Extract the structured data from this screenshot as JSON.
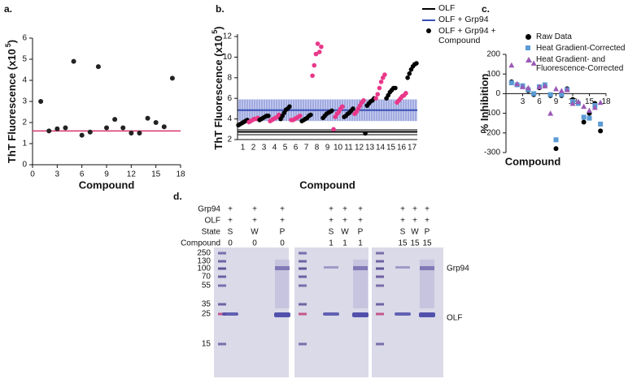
{
  "chart_data": [
    {
      "type": "scatter",
      "label": "a.",
      "ylabel": "ThT Fluorescence (x10",
      "ylabel_exponent": "5",
      "ylabel_close": ")",
      "xlabel": "Compound",
      "x": [
        1,
        2,
        3,
        4,
        5,
        6,
        7,
        8,
        9,
        10,
        11,
        12,
        13,
        14,
        15,
        16,
        17
      ],
      "values": [
        3.0,
        1.6,
        1.7,
        1.75,
        4.9,
        1.4,
        1.55,
        4.65,
        1.75,
        2.15,
        1.75,
        1.5,
        1.5,
        2.2,
        2.0,
        1.8,
        4.1
      ],
      "color": "#222222",
      "xlim": [
        0,
        18
      ],
      "xticks": [
        0,
        3,
        6,
        9,
        12,
        15,
        18
      ],
      "ylim": [
        0,
        6
      ],
      "yticks": [
        0,
        1,
        2,
        3,
        4,
        5,
        6
      ],
      "reference_line": {
        "value": 1.6,
        "color": "#d6336c"
      }
    },
    {
      "type": "grouped_scatter",
      "label": "b.",
      "ylabel": "ThT Fluorescence (x10",
      "ylabel_exponent": "5",
      "ylabel_close": ")",
      "xlabel": "Compound",
      "categories": [
        "1",
        "2",
        "3",
        "4",
        "5",
        "6",
        "7",
        "8",
        "9",
        "10",
        "11",
        "12",
        "13",
        "14",
        "15",
        "16",
        "17"
      ],
      "bands": [
        {
          "name": "OLF",
          "color": "#000000",
          "mean": 2.75,
          "range": [
            2.4,
            3.1
          ]
        },
        {
          "name": "OLF + Grp94",
          "color": "#3a4fb5",
          "mean": 4.85,
          "range": [
            3.8,
            5.9
          ]
        }
      ],
      "series": [
        {
          "name": "OLF + Grp94 + Compound",
          "color": "#000000",
          "point_colors": [
            "#000000",
            "#e8388a",
            "#000000",
            "#e8388a",
            "#000000",
            "#e8388a",
            "#000000",
            "#e8388a",
            "#000000",
            "#e8388a",
            "#000000",
            "#e8388a",
            "#000000",
            "#e8388a",
            "#000000",
            "#e8388a",
            "#000000"
          ],
          "values": [
            [
              3.4,
              3.5,
              3.6,
              3.7,
              3.8,
              3.9
            ],
            [
              3.7,
              3.8,
              3.9,
              4.0,
              4.0,
              4.1
            ],
            [
              3.9,
              4.0,
              4.1,
              4.2,
              4.3,
              4.3
            ],
            [
              3.8,
              3.9,
              4.0,
              4.1,
              4.2,
              4.4
            ],
            [
              4.0,
              4.3,
              4.6,
              4.9,
              5.0,
              5.2
            ],
            [
              3.9,
              3.9,
              4.0,
              4.1,
              4.2,
              4.3
            ],
            [
              3.8,
              3.9,
              4.0,
              4.1,
              4.3,
              4.4
            ],
            [
              8.2,
              9.2,
              10.3,
              11.3,
              10.5,
              11.0
            ],
            [
              4.1,
              4.3,
              4.5,
              4.6,
              4.7,
              4.8
            ],
            [
              3.0,
              4.2,
              4.5,
              4.7,
              5.0,
              5.2
            ],
            [
              4.2,
              4.3,
              4.5,
              4.6,
              4.8,
              5.0
            ],
            [
              4.5,
              4.7,
              5.0,
              5.3,
              5.6,
              5.8
            ],
            [
              2.6,
              5.3,
              5.5,
              5.7,
              5.8,
              6.0
            ],
            [
              6.0,
              6.4,
              7.0,
              7.6,
              8.0,
              8.3
            ],
            [
              6.0,
              6.3,
              6.6,
              6.8,
              7.0,
              7.0
            ],
            [
              5.6,
              5.8,
              6.0,
              6.2,
              6.3,
              6.5
            ],
            [
              8.0,
              8.4,
              8.8,
              9.1,
              9.3,
              9.4
            ]
          ]
        }
      ],
      "ylim": [
        2,
        12
      ],
      "yticks": [
        2,
        4,
        6,
        8,
        10,
        12
      ],
      "legend": "outside-top-right"
    },
    {
      "type": "scatter",
      "label": "c.",
      "ylabel": "% Inhibition",
      "xlabel": "Compound",
      "x": [
        1,
        2,
        3,
        4,
        5,
        6,
        7,
        8,
        9,
        10,
        11,
        12,
        13,
        14,
        15,
        16,
        17
      ],
      "series": [
        {
          "name": "Raw Data",
          "color": "#000000",
          "marker": "circle",
          "values": [
            60,
            45,
            40,
            15,
            -5,
            30,
            40,
            -10,
            -280,
            -10,
            25,
            -30,
            -50,
            -145,
            -100,
            -50,
            -190
          ]
        },
        {
          "name": "Heat Gradient-Corrected",
          "color": "#5b9bd5",
          "marker": "square",
          "values": [
            55,
            45,
            40,
            20,
            0,
            35,
            45,
            -5,
            -235,
            -5,
            20,
            -40,
            -50,
            -120,
            -125,
            -60,
            -155
          ]
        },
        {
          "name": "Heat Gradient- and Fluorescence-Corrected",
          "color": "#9b59b6",
          "marker": "triangle",
          "values": [
            145,
            50,
            35,
            30,
            155,
            35,
            40,
            -100,
            25,
            15,
            20,
            -50,
            -40,
            -65,
            -85,
            -70,
            -45
          ]
        }
      ],
      "xlim": [
        0,
        18
      ],
      "xticks": [
        3,
        6,
        9,
        12,
        15,
        18
      ],
      "ylim": [
        -300,
        200
      ],
      "yticks": [
        200,
        100,
        0,
        -100,
        -200,
        -300
      ],
      "legend": "top-right"
    }
  ],
  "gel": {
    "label": "d.",
    "row_labels": [
      "Grp94",
      "OLF",
      "State",
      "Compound"
    ],
    "panels": [
      {
        "lanes": [
          [
            "+",
            "+",
            "S",
            "0"
          ],
          [
            "+",
            "+",
            "W",
            "0"
          ],
          [
            "+",
            "+",
            "P",
            "0"
          ]
        ]
      },
      {
        "lanes": [
          [
            "+",
            "+",
            "S",
            "1"
          ],
          [
            "+",
            "+",
            "W",
            "1"
          ],
          [
            "+",
            "+",
            "P",
            "1"
          ]
        ]
      },
      {
        "lanes": [
          [
            "+",
            "+",
            "S",
            "15"
          ],
          [
            "+",
            "+",
            "W",
            "15"
          ],
          [
            "+",
            "+",
            "P",
            "15"
          ]
        ]
      }
    ],
    "marker_sizes": [
      250,
      130,
      100,
      70,
      55,
      35,
      25,
      15
    ],
    "band_labels": [
      "Grp94",
      "OLF"
    ]
  }
}
